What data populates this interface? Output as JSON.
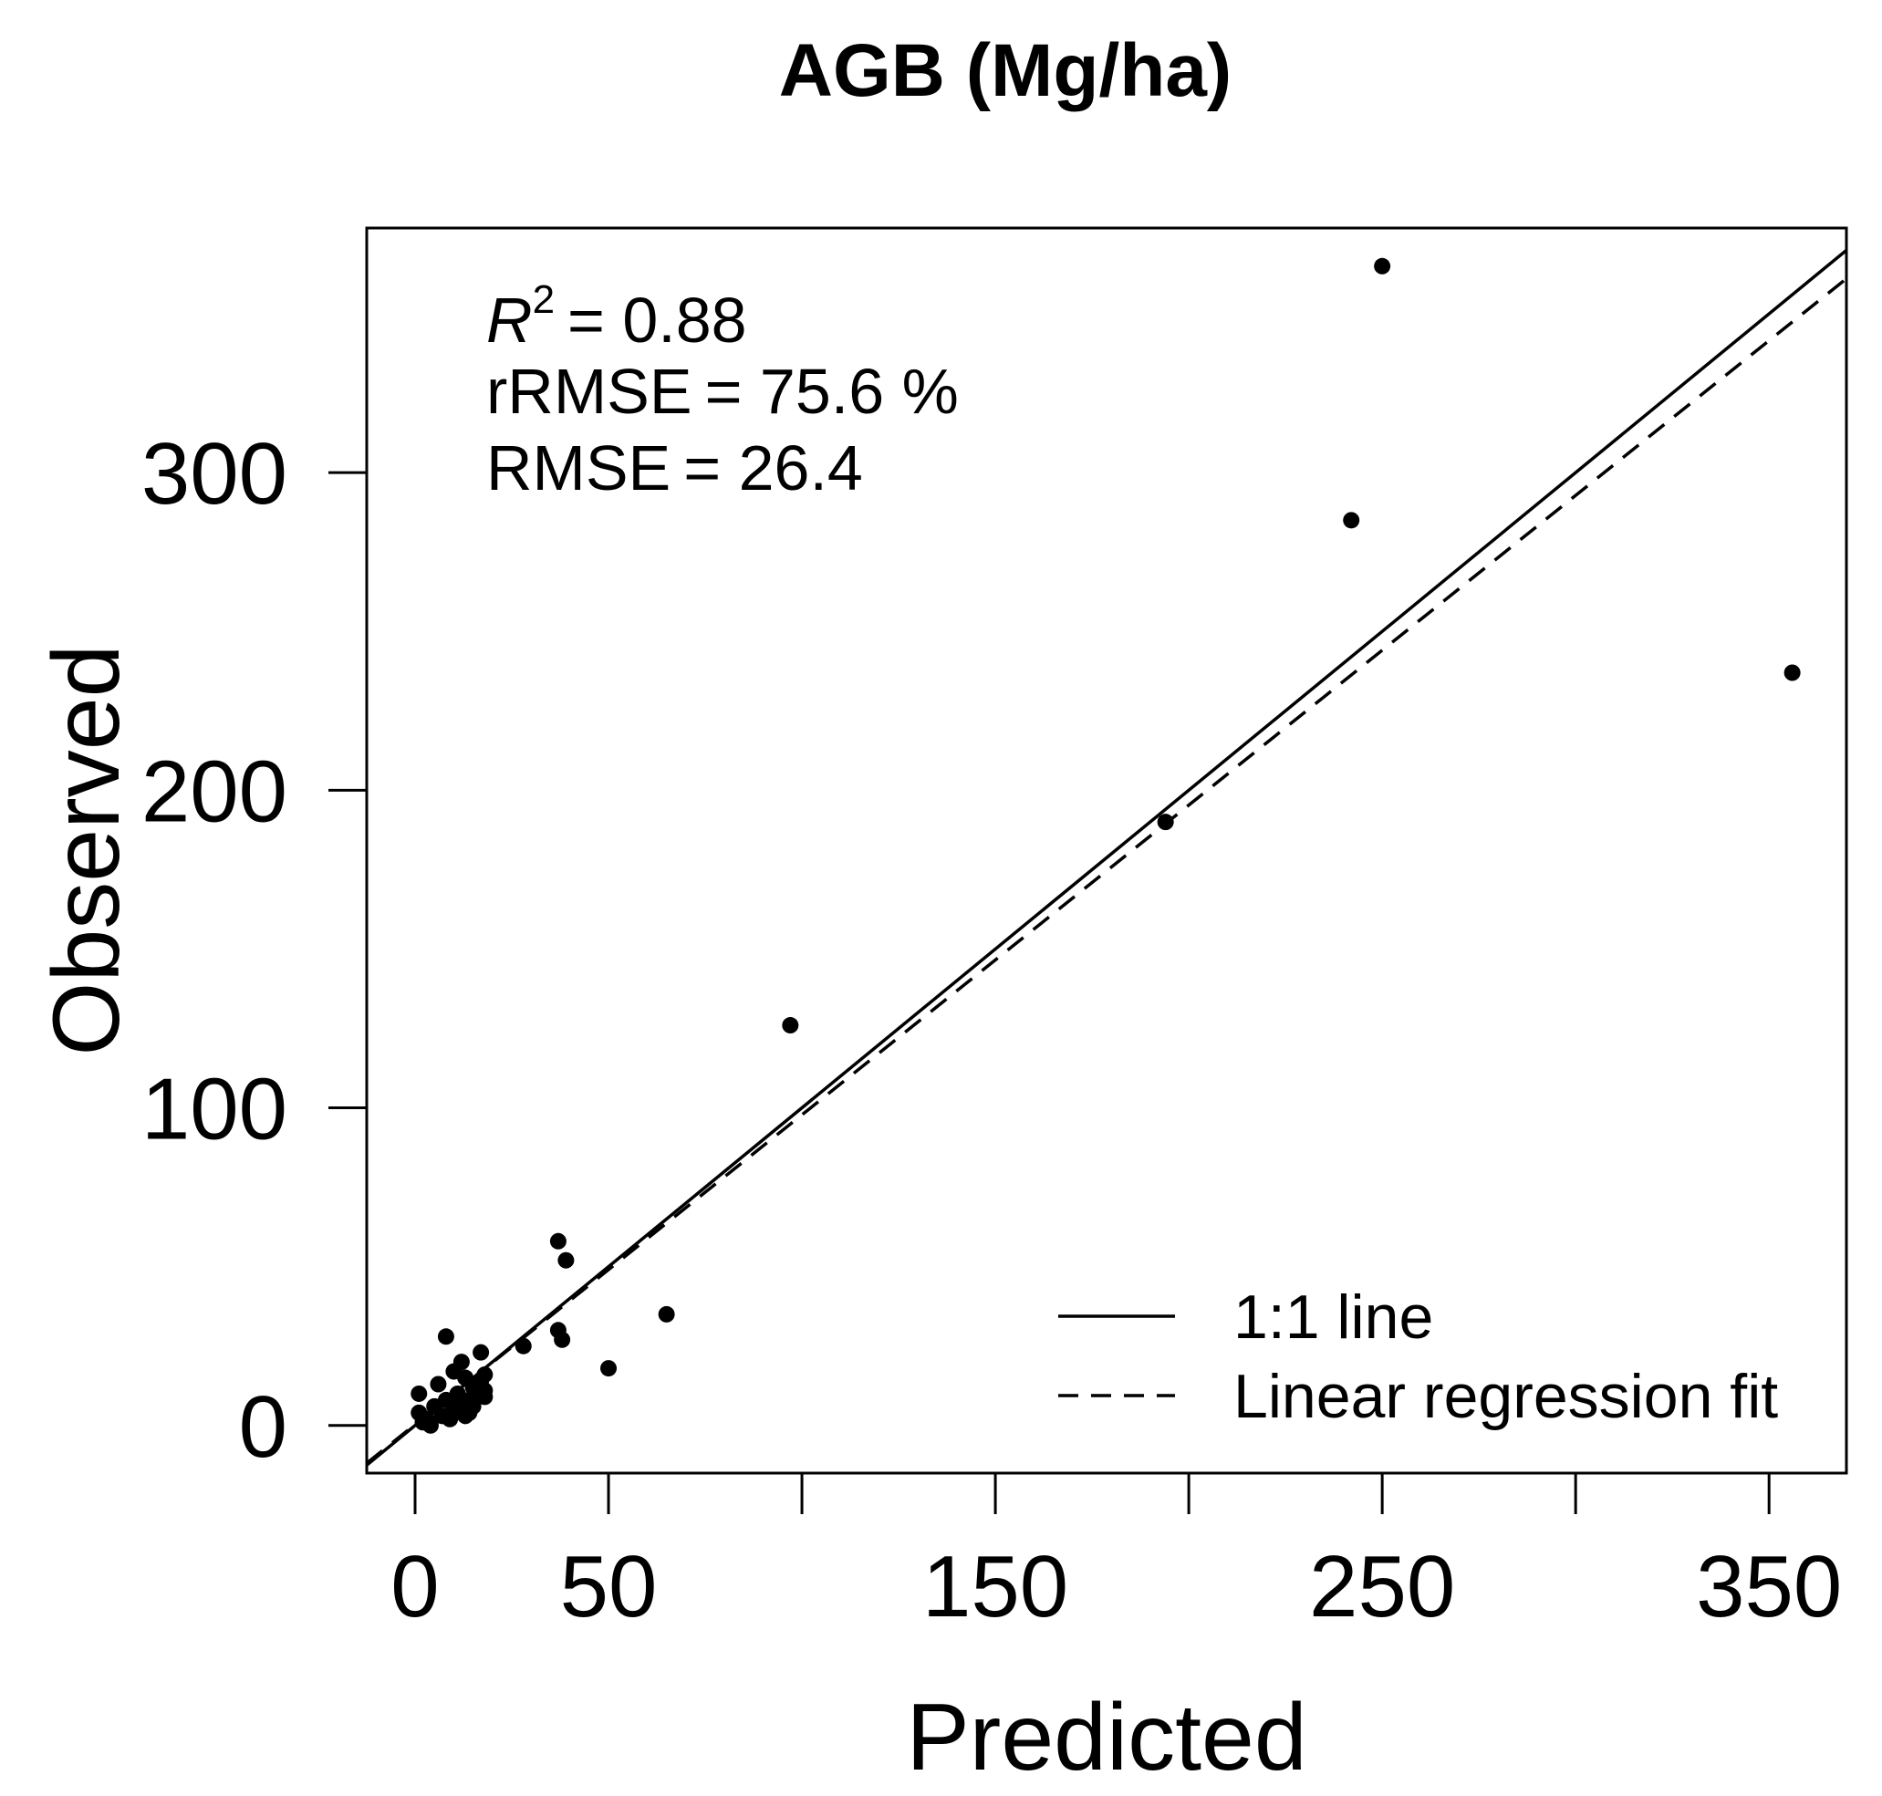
{
  "chart_data": {
    "type": "scatter",
    "title": "AGB (Mg/ha)",
    "xlabel": "Predicted",
    "ylabel": "Observed",
    "xlim": [
      -12.5,
      370
    ],
    "ylim": [
      -15,
      377
    ],
    "x_ticks": [
      0,
      50,
      100,
      150,
      200,
      250,
      300,
      350
    ],
    "x_tick_labels": [
      "0",
      "50",
      "",
      "150",
      "",
      "250",
      "",
      "350"
    ],
    "y_ticks": [
      0,
      100,
      200,
      300
    ],
    "y_tick_labels": [
      "0",
      "100",
      "200",
      "300"
    ],
    "stats": {
      "r2_symbol": "R",
      "r2_superscript": "2",
      "r2_eq": "= 0.88",
      "rrmse_label": "rRMSE",
      "rrmse_eq": "= 75.6 %",
      "rmse_label": "RMSE",
      "rmse_eq": "= 26.4"
    },
    "legend": {
      "position": "bottom-right",
      "entries": [
        {
          "label": "1:1 line",
          "style": "solid"
        },
        {
          "label": "Linear regression fit",
          "style": "dashed"
        }
      ]
    },
    "reference_line": {
      "slope": 1,
      "intercept": 0
    },
    "regression_line": {
      "slope": 0.975,
      "intercept": 0.3
    },
    "series": [
      {
        "name": "observations",
        "points": [
          {
            "x": 1,
            "y": 10
          },
          {
            "x": 1,
            "y": 4
          },
          {
            "x": 2,
            "y": 1
          },
          {
            "x": 3,
            "y": 2
          },
          {
            "x": 4,
            "y": 0
          },
          {
            "x": 5,
            "y": 6
          },
          {
            "x": 6,
            "y": 13
          },
          {
            "x": 7,
            "y": 3
          },
          {
            "x": 8,
            "y": 28
          },
          {
            "x": 8,
            "y": 8
          },
          {
            "x": 9,
            "y": 2
          },
          {
            "x": 10,
            "y": 17
          },
          {
            "x": 10,
            "y": 5
          },
          {
            "x": 11,
            "y": 10
          },
          {
            "x": 12,
            "y": 7
          },
          {
            "x": 12,
            "y": 20
          },
          {
            "x": 13,
            "y": 3
          },
          {
            "x": 13,
            "y": 15
          },
          {
            "x": 14,
            "y": 8
          },
          {
            "x": 14,
            "y": 4
          },
          {
            "x": 15,
            "y": 12
          },
          {
            "x": 15,
            "y": 6
          },
          {
            "x": 16,
            "y": 9
          },
          {
            "x": 17,
            "y": 23
          },
          {
            "x": 17,
            "y": 14
          },
          {
            "x": 18,
            "y": 11
          },
          {
            "x": 18,
            "y": 16
          },
          {
            "x": 18,
            "y": 9
          },
          {
            "x": 28,
            "y": 25
          },
          {
            "x": 37,
            "y": 58
          },
          {
            "x": 37,
            "y": 30
          },
          {
            "x": 38,
            "y": 27
          },
          {
            "x": 39,
            "y": 52
          },
          {
            "x": 50,
            "y": 18
          },
          {
            "x": 65,
            "y": 35
          },
          {
            "x": 97,
            "y": 126
          },
          {
            "x": 194,
            "y": 190
          },
          {
            "x": 242,
            "y": 285
          },
          {
            "x": 250,
            "y": 365
          },
          {
            "x": 356,
            "y": 237
          }
        ]
      }
    ]
  }
}
